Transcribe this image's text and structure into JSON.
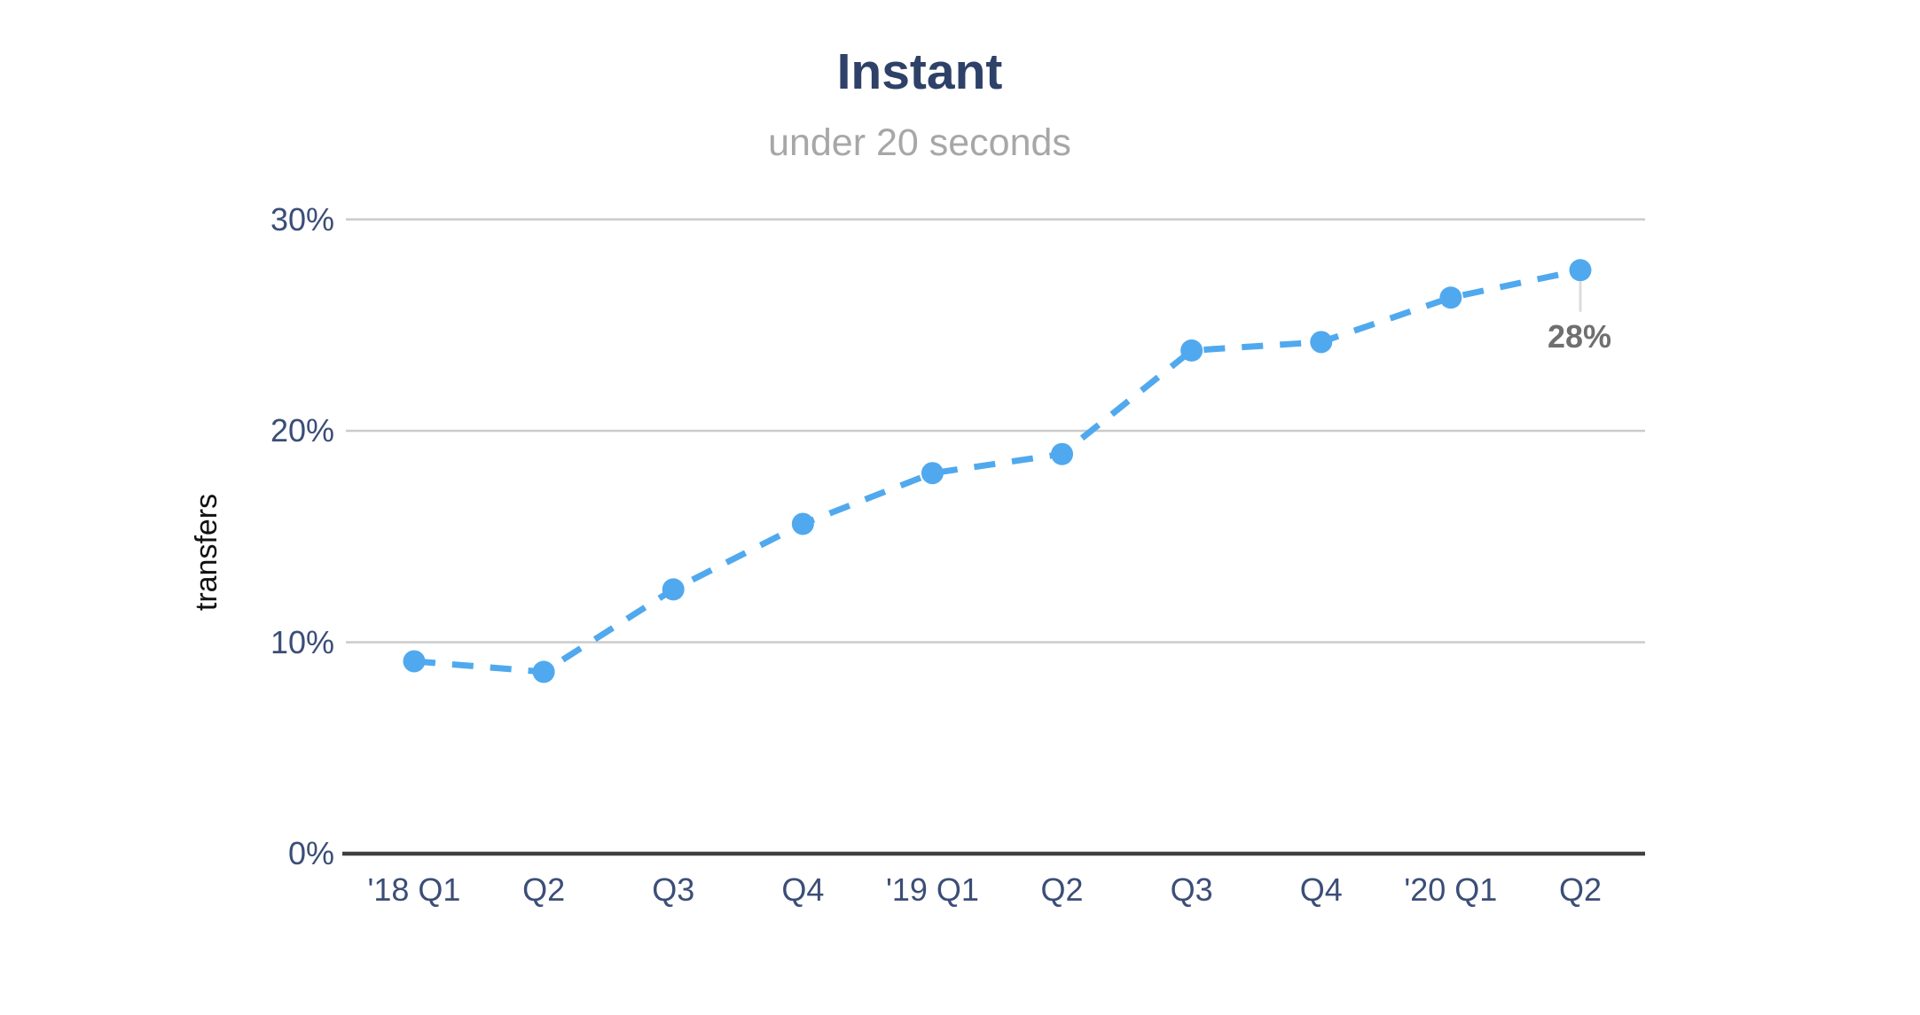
{
  "chart_data": {
    "type": "line",
    "title": "Instant",
    "subtitle": "under 20 seconds",
    "ylabel": "transfers",
    "xlabel": "",
    "categories": [
      "'18 Q1",
      "Q2",
      "Q3",
      "Q4",
      "'19 Q1",
      "Q2",
      "Q3",
      "Q4",
      "'20 Q1",
      "Q2"
    ],
    "series": [
      {
        "name": "Instant transfers",
        "values": [
          9.1,
          8.6,
          12.5,
          15.6,
          18.0,
          18.9,
          23.8,
          24.2,
          26.3,
          27.6
        ],
        "line_style": "dashed",
        "marker": "circle"
      }
    ],
    "annotation": {
      "text": "28%",
      "point_index": 9
    },
    "yticks": [
      {
        "value": 0,
        "label": "0%"
      },
      {
        "value": 10,
        "label": "10%"
      },
      {
        "value": 20,
        "label": "20%"
      },
      {
        "value": 30,
        "label": "30%"
      }
    ],
    "ylim": [
      0,
      32
    ],
    "grid": "horizontal",
    "legend": "none",
    "colors": {
      "line": "#50a9ee",
      "marker": "#50a9ee",
      "title": "#2e4168",
      "subtitle": "#a7a7a7",
      "tick_label": "#3b4e77",
      "axis_title": "#111111",
      "gridline": "#cbcbcb",
      "axis_line": "#3f3f3f",
      "annotation_text": "#6f6f6f",
      "leader_line": "#dcdcdc",
      "background": "#ffffff"
    }
  }
}
